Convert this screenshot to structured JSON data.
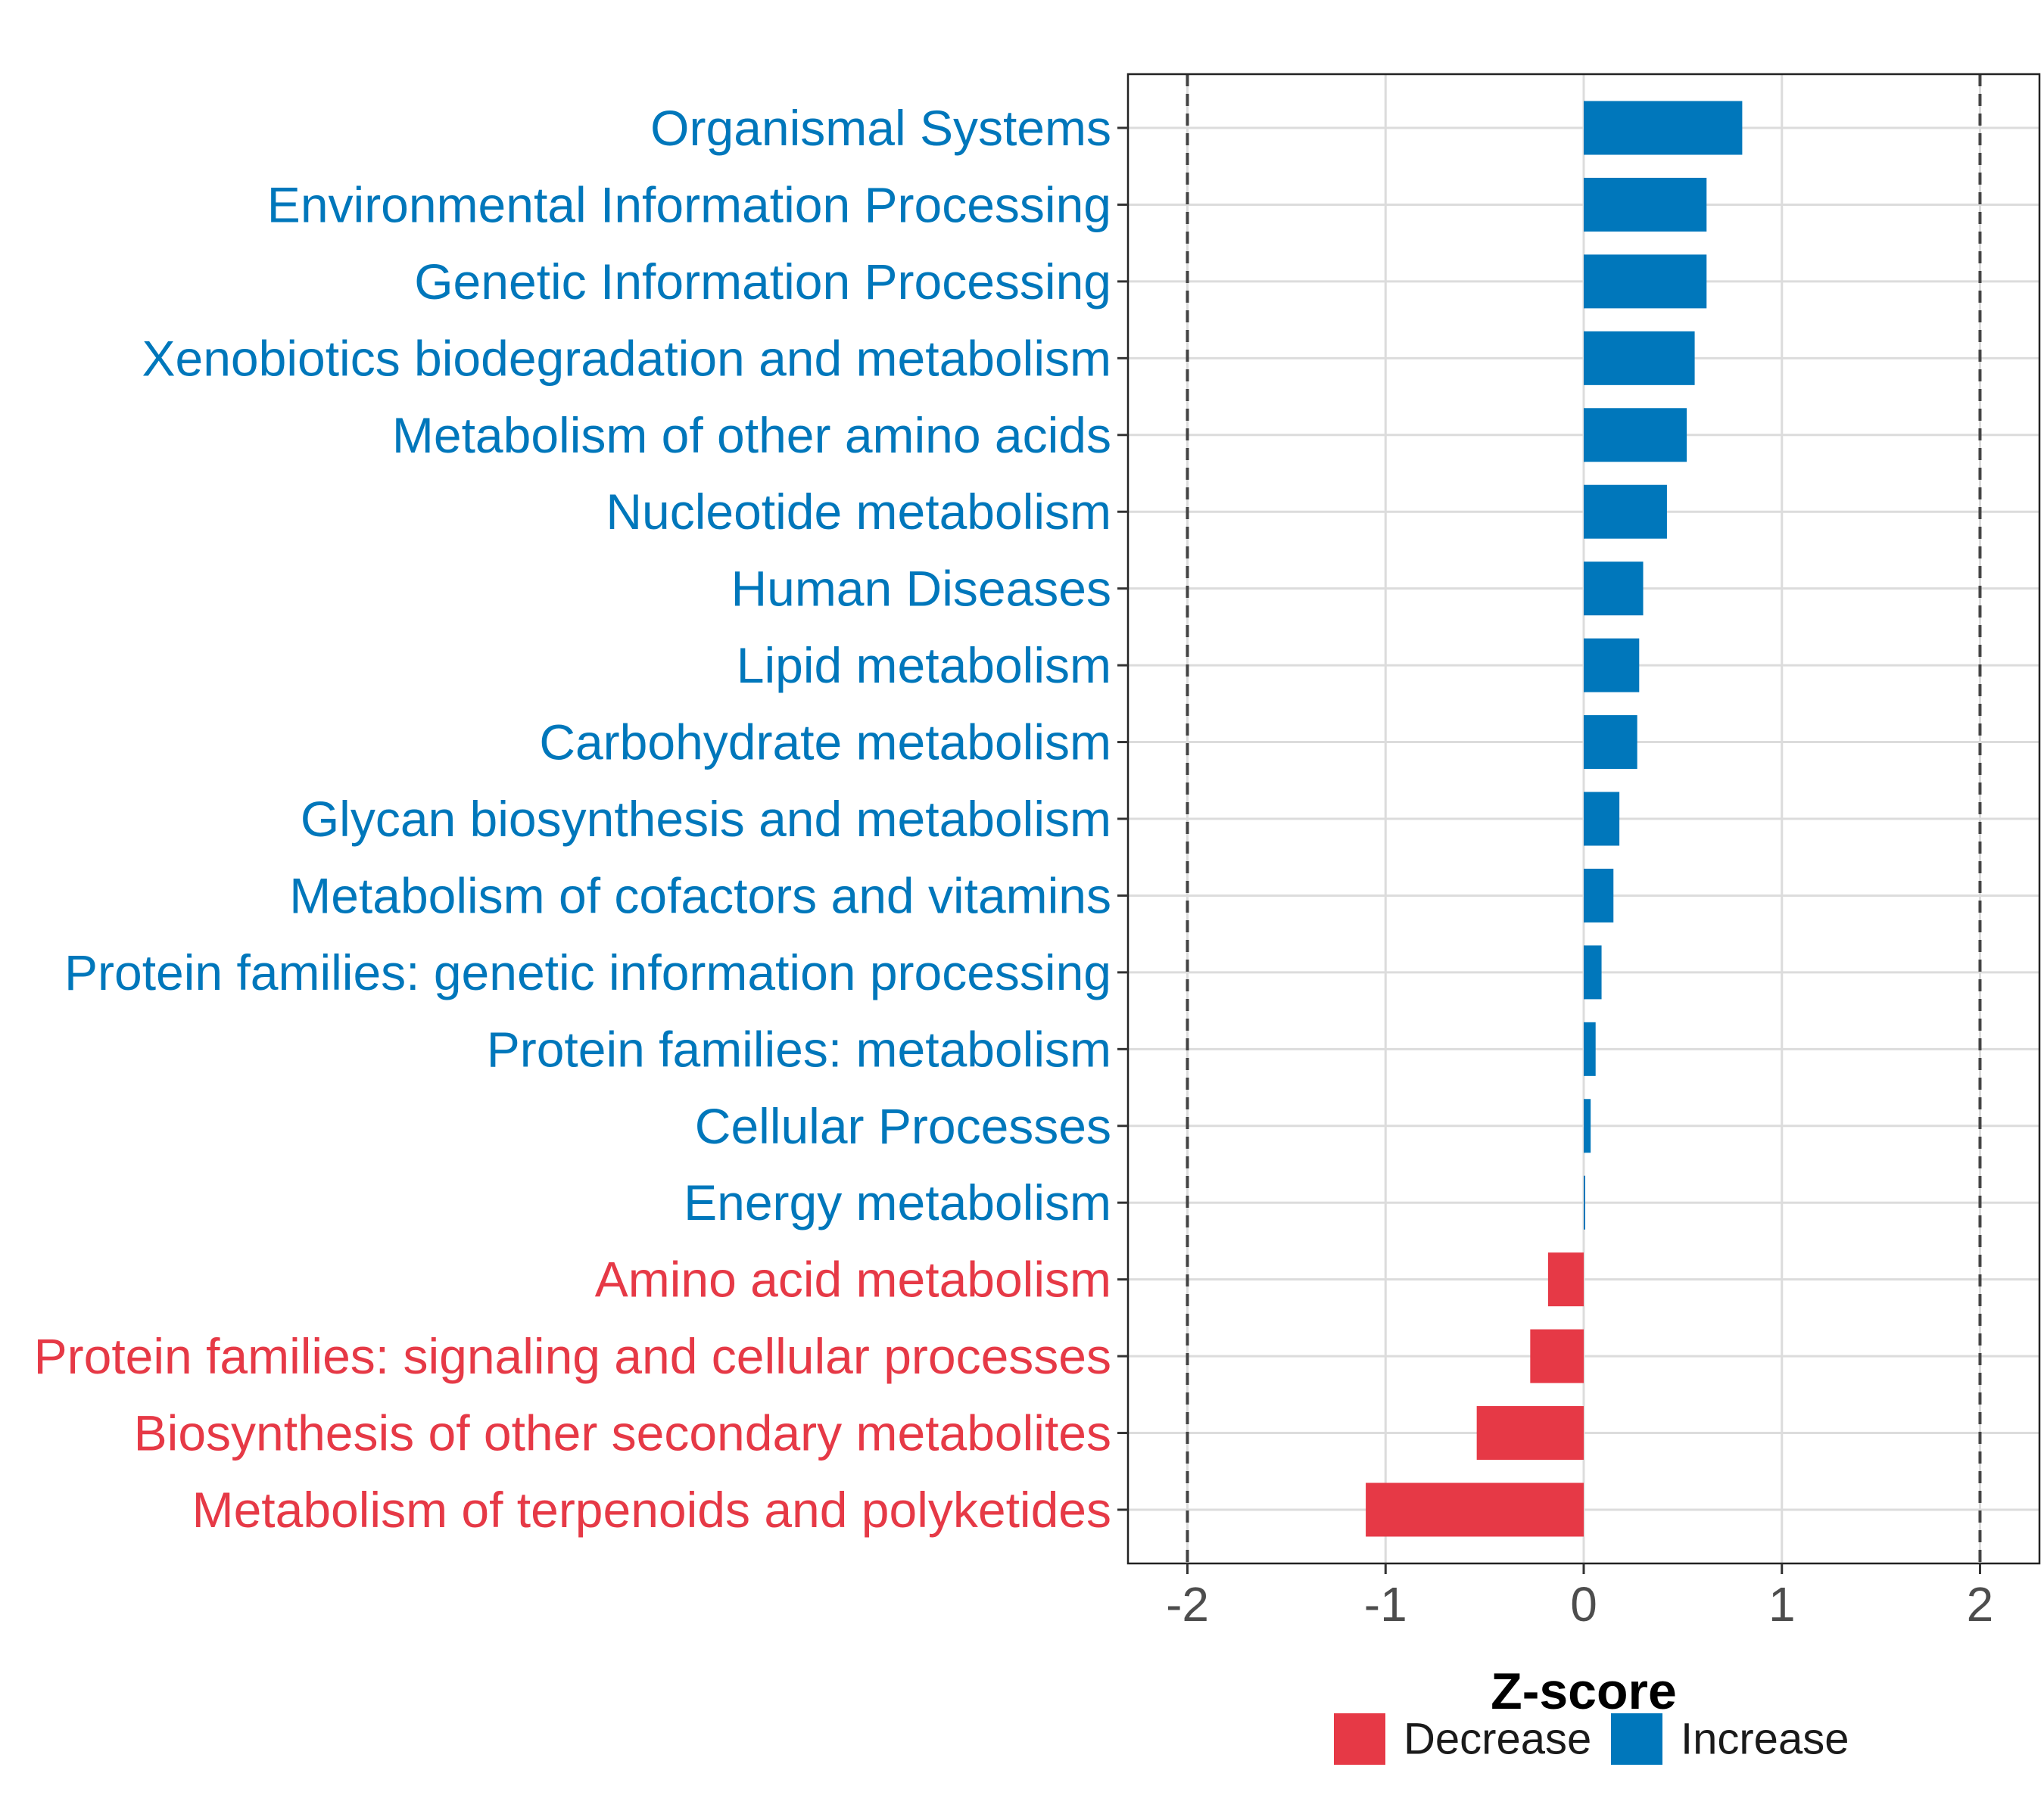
{
  "chart_data": {
    "type": "bar",
    "orientation": "horizontal",
    "xlabel": "Z-score",
    "ylabel": "",
    "xlim": [
      -2.3,
      2.3
    ],
    "x_ticks": [
      -2,
      -1,
      0,
      1,
      2
    ],
    "x_tick_labels": [
      "-2",
      "-1",
      "0",
      "1",
      "2"
    ],
    "reference_lines": [
      -2,
      2
    ],
    "grid": true,
    "legend_position": "bottom",
    "colors": {
      "Decrease": "#E63946",
      "Increase": "#0077BB"
    },
    "legend": [
      {
        "label": "Decrease",
        "color": "#E63946"
      },
      {
        "label": "Increase",
        "color": "#0077BB"
      }
    ],
    "bars": [
      {
        "category": "Organismal Systems",
        "value": 0.8,
        "group": "Increase"
      },
      {
        "category": "Environmental Information Processing",
        "value": 0.62,
        "group": "Increase"
      },
      {
        "category": "Genetic Information Processing",
        "value": 0.62,
        "group": "Increase"
      },
      {
        "category": "Xenobiotics biodegradation and metabolism",
        "value": 0.56,
        "group": "Increase"
      },
      {
        "category": "Metabolism of other amino acids",
        "value": 0.52,
        "group": "Increase"
      },
      {
        "category": "Nucleotide metabolism",
        "value": 0.42,
        "group": "Increase"
      },
      {
        "category": "Human Diseases",
        "value": 0.3,
        "group": "Increase"
      },
      {
        "category": "Lipid metabolism",
        "value": 0.28,
        "group": "Increase"
      },
      {
        "category": "Carbohydrate metabolism",
        "value": 0.27,
        "group": "Increase"
      },
      {
        "category": "Glycan biosynthesis and metabolism",
        "value": 0.18,
        "group": "Increase"
      },
      {
        "category": "Metabolism of cofactors and vitamins",
        "value": 0.15,
        "group": "Increase"
      },
      {
        "category": "Protein families: genetic information processing",
        "value": 0.09,
        "group": "Increase"
      },
      {
        "category": "Protein families: metabolism",
        "value": 0.06,
        "group": "Increase"
      },
      {
        "category": "Cellular Processes",
        "value": 0.035,
        "group": "Increase"
      },
      {
        "category": "Energy metabolism",
        "value": 0.005,
        "group": "Increase"
      },
      {
        "category": "Amino acid metabolism",
        "value": -0.18,
        "group": "Decrease"
      },
      {
        "category": "Protein families: signaling and cellular processes",
        "value": -0.27,
        "group": "Decrease"
      },
      {
        "category": "Biosynthesis of other secondary metabolites",
        "value": -0.54,
        "group": "Decrease"
      },
      {
        "category": "Metabolism of terpenoids and polyketides",
        "value": -1.1,
        "group": "Decrease"
      }
    ]
  }
}
